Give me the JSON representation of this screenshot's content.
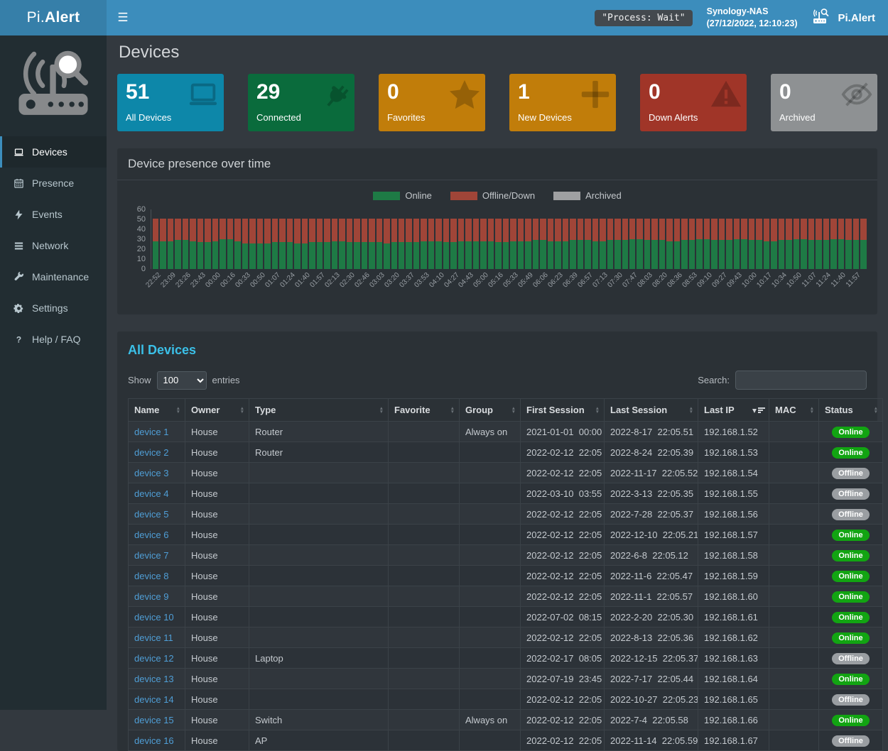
{
  "header": {
    "logo_pre": "Pi.",
    "logo_bold": "Alert",
    "process_badge": "\"Process: Wait\"",
    "nas_name": "Synology-NAS",
    "nas_time": "(27/12/2022, 12:10:23)",
    "brand_right": "Pi.Alert"
  },
  "sidebar": {
    "items": [
      {
        "label": "Devices",
        "icon": "laptop-icon",
        "active": true
      },
      {
        "label": "Presence",
        "icon": "calendar-icon",
        "active": false
      },
      {
        "label": "Events",
        "icon": "bolt-icon",
        "active": false
      },
      {
        "label": "Network",
        "icon": "network-icon",
        "active": false
      },
      {
        "label": "Maintenance",
        "icon": "wrench-icon",
        "active": false
      },
      {
        "label": "Settings",
        "icon": "gear-icon",
        "active": false
      },
      {
        "label": "Help / FAQ",
        "icon": "question-icon",
        "active": false
      }
    ]
  },
  "page": {
    "title": "Devices"
  },
  "cards": [
    {
      "value": "51",
      "label": "All Devices",
      "color": "#0d87a9",
      "icon": "laptop-icon"
    },
    {
      "value": "29",
      "label": "Connected",
      "color": "#0a6b3c",
      "icon": "plug-icon"
    },
    {
      "value": "0",
      "label": "Favorites",
      "color": "#c17d0a",
      "icon": "star-icon"
    },
    {
      "value": "1",
      "label": "New Devices",
      "color": "#c17d0a",
      "icon": "plus-icon"
    },
    {
      "value": "0",
      "label": "Down Alerts",
      "color": "#a03528",
      "icon": "warning-icon"
    },
    {
      "value": "0",
      "label": "Archived",
      "color": "#8e9193",
      "icon": "eye-slash-icon"
    }
  ],
  "chart_panel": {
    "title": "Device presence over time"
  },
  "chart_data": {
    "type": "bar",
    "stacked": true,
    "title": "Device presence over time",
    "xlabel": "",
    "ylabel": "",
    "ylim": [
      0,
      60
    ],
    "y_ticks": [
      60,
      50,
      40,
      30,
      20,
      10,
      0
    ],
    "legend_position": "top-center",
    "grid": false,
    "legend": [
      {
        "name": "Online",
        "color": "#1e7a45"
      },
      {
        "name": "Offline/Down",
        "color": "#a04538"
      },
      {
        "name": "Archived",
        "color": "#9fa0a2"
      }
    ],
    "x_labels": [
      "22:52",
      "23:09",
      "23:26",
      "23:43",
      "00:00",
      "00:16",
      "00:33",
      "00:50",
      "01:07",
      "01:24",
      "01:40",
      "01:57",
      "02:13",
      "02:30",
      "02:46",
      "03:03",
      "03:20",
      "03:37",
      "03:53",
      "04:10",
      "04:27",
      "04:43",
      "05:00",
      "05:16",
      "05:33",
      "05:49",
      "06:06",
      "06:23",
      "06:39",
      "06:57",
      "07:13",
      "07:30",
      "07:47",
      "08:03",
      "08:20",
      "08:36",
      "08:53",
      "09:10",
      "09:27",
      "09:43",
      "10:00",
      "10:17",
      "10:34",
      "10:50",
      "11:07",
      "11:24",
      "11:40",
      "11:57"
    ],
    "series": [
      {
        "name": "Online",
        "values": [
          28,
          28,
          28,
          29,
          29,
          28,
          27,
          27,
          28,
          30,
          30,
          28,
          26,
          26,
          26,
          26,
          27,
          27,
          27,
          26,
          26,
          27,
          27,
          27,
          28,
          28,
          27,
          27,
          27,
          27,
          27,
          26,
          27,
          27,
          27,
          27,
          28,
          28,
          28,
          27,
          27,
          28,
          28,
          28,
          28,
          28,
          27,
          27,
          28,
          28,
          28,
          29,
          29,
          28,
          28,
          28,
          29,
          29,
          29,
          28,
          28,
          29,
          29,
          29,
          30,
          30,
          29,
          29,
          29,
          28,
          28,
          29,
          29,
          30,
          30,
          29,
          29,
          29,
          30,
          30,
          29,
          29,
          28,
          28,
          29,
          29,
          30,
          30,
          29,
          29,
          29,
          30,
          30,
          29,
          29,
          29
        ]
      },
      {
        "name": "Offline/Down",
        "values": [
          23,
          23,
          23,
          22,
          22,
          23,
          24,
          24,
          23,
          21,
          21,
          23,
          25,
          25,
          25,
          25,
          24,
          24,
          24,
          25,
          25,
          24,
          24,
          24,
          23,
          23,
          24,
          24,
          24,
          24,
          24,
          25,
          24,
          24,
          24,
          24,
          23,
          23,
          23,
          24,
          24,
          23,
          23,
          23,
          23,
          23,
          24,
          24,
          23,
          23,
          23,
          22,
          22,
          23,
          23,
          23,
          22,
          22,
          22,
          23,
          23,
          22,
          22,
          22,
          21,
          21,
          22,
          22,
          22,
          23,
          23,
          22,
          22,
          21,
          21,
          22,
          22,
          22,
          21,
          21,
          22,
          22,
          23,
          23,
          22,
          22,
          21,
          21,
          22,
          22,
          22,
          21,
          21,
          22,
          22,
          22
        ]
      },
      {
        "name": "Archived",
        "values": [
          0,
          0,
          0,
          0,
          0,
          0,
          0,
          0,
          0,
          0,
          0,
          0,
          0,
          0,
          0,
          0,
          0,
          0,
          0,
          0,
          0,
          0,
          0,
          0,
          0,
          0,
          0,
          0,
          0,
          0,
          0,
          0,
          0,
          0,
          0,
          0,
          0,
          0,
          0,
          0,
          0,
          0,
          0,
          0,
          0,
          0,
          0,
          0,
          0,
          0,
          0,
          0,
          0,
          0,
          0,
          0,
          0,
          0,
          0,
          0,
          0,
          0,
          0,
          0,
          0,
          0,
          0,
          0,
          0,
          0,
          0,
          0,
          0,
          0,
          0,
          0,
          0,
          0,
          0,
          0,
          0,
          0,
          0,
          0,
          0,
          0,
          0,
          0,
          0,
          0,
          0,
          0,
          0,
          0,
          0,
          0
        ]
      }
    ]
  },
  "table_panel": {
    "title": "All Devices",
    "show_label": "Show",
    "entries_label": "entries",
    "page_size": "100",
    "search_label": "Search:",
    "search_value": "",
    "sorted_column": "Last IP",
    "status_colors": {
      "Online": "#12a412",
      "Offline": "#9a9ea2"
    },
    "columns": [
      "Name",
      "Owner",
      "Type",
      "Favorite",
      "Group",
      "First Session",
      "Last Session",
      "Last IP",
      "MAC",
      "Status"
    ],
    "rows": [
      {
        "name": "device 1",
        "owner": "House",
        "type": "Router",
        "favorite": "",
        "group": "Always on",
        "first_session": "2021-01-01  00:00",
        "last_session": "2022-8-17  22:05.51",
        "last_ip": "192.168.1.52",
        "mac": "",
        "status": "Online"
      },
      {
        "name": "device 2",
        "owner": "House",
        "type": "Router",
        "favorite": "",
        "group": "",
        "first_session": "2022-02-12  22:05",
        "last_session": "2022-8-24  22:05.39",
        "last_ip": "192.168.1.53",
        "mac": "",
        "status": "Online"
      },
      {
        "name": "device 3",
        "owner": "House",
        "type": "",
        "favorite": "",
        "group": "",
        "first_session": "2022-02-12  22:05",
        "last_session": "2022-11-17  22:05.52",
        "last_ip": "192.168.1.54",
        "mac": "",
        "status": "Offline"
      },
      {
        "name": "device 4",
        "owner": "House",
        "type": "",
        "favorite": "",
        "group": "",
        "first_session": "2022-03-10  03:55",
        "last_session": "2022-3-13  22:05.35",
        "last_ip": "192.168.1.55",
        "mac": "",
        "status": "Offline"
      },
      {
        "name": "device 5",
        "owner": "House",
        "type": "",
        "favorite": "",
        "group": "",
        "first_session": "2022-02-12  22:05",
        "last_session": "2022-7-28  22:05.37",
        "last_ip": "192.168.1.56",
        "mac": "",
        "status": "Offline"
      },
      {
        "name": "device 6",
        "owner": "House",
        "type": "",
        "favorite": "",
        "group": "",
        "first_session": "2022-02-12  22:05",
        "last_session": "2022-12-10  22:05.21",
        "last_ip": "192.168.1.57",
        "mac": "",
        "status": "Online"
      },
      {
        "name": "device 7",
        "owner": "House",
        "type": "",
        "favorite": "",
        "group": "",
        "first_session": "2022-02-12  22:05",
        "last_session": "2022-6-8  22:05.12",
        "last_ip": "192.168.1.58",
        "mac": "",
        "status": "Online"
      },
      {
        "name": "device 8",
        "owner": "House",
        "type": "",
        "favorite": "",
        "group": "",
        "first_session": "2022-02-12  22:05",
        "last_session": "2022-11-6  22:05.47",
        "last_ip": "192.168.1.59",
        "mac": "",
        "status": "Online"
      },
      {
        "name": "device 9",
        "owner": "House",
        "type": "",
        "favorite": "",
        "group": "",
        "first_session": "2022-02-12  22:05",
        "last_session": "2022-11-1  22:05.57",
        "last_ip": "192.168.1.60",
        "mac": "",
        "status": "Online"
      },
      {
        "name": "device 10",
        "owner": "House",
        "type": "",
        "favorite": "",
        "group": "",
        "first_session": "2022-07-02  08:15",
        "last_session": "2022-2-20  22:05.30",
        "last_ip": "192.168.1.61",
        "mac": "",
        "status": "Online"
      },
      {
        "name": "device 11",
        "owner": "House",
        "type": "",
        "favorite": "",
        "group": "",
        "first_session": "2022-02-12  22:05",
        "last_session": "2022-8-13  22:05.36",
        "last_ip": "192.168.1.62",
        "mac": "",
        "status": "Online"
      },
      {
        "name": "device 12",
        "owner": "House",
        "type": "Laptop",
        "favorite": "",
        "group": "",
        "first_session": "2022-02-17  08:05",
        "last_session": "2022-12-15  22:05.37",
        "last_ip": "192.168.1.63",
        "mac": "",
        "status": "Offline"
      },
      {
        "name": "device 13",
        "owner": "House",
        "type": "",
        "favorite": "",
        "group": "",
        "first_session": "2022-07-19  23:45",
        "last_session": "2022-7-17  22:05.44",
        "last_ip": "192.168.1.64",
        "mac": "",
        "status": "Online"
      },
      {
        "name": "device 14",
        "owner": "House",
        "type": "",
        "favorite": "",
        "group": "",
        "first_session": "2022-02-12  22:05",
        "last_session": "2022-10-27  22:05.23",
        "last_ip": "192.168.1.65",
        "mac": "",
        "status": "Offline"
      },
      {
        "name": "device 15",
        "owner": "House",
        "type": "Switch",
        "favorite": "",
        "group": "Always on",
        "first_session": "2022-02-12  22:05",
        "last_session": "2022-7-4  22:05.58",
        "last_ip": "192.168.1.66",
        "mac": "",
        "status": "Online"
      },
      {
        "name": "device 16",
        "owner": "House",
        "type": "AP",
        "favorite": "",
        "group": "",
        "first_session": "2022-02-12  22:05",
        "last_session": "2022-11-14  22:05.59",
        "last_ip": "192.168.1.67",
        "mac": "",
        "status": "Offline"
      }
    ]
  }
}
